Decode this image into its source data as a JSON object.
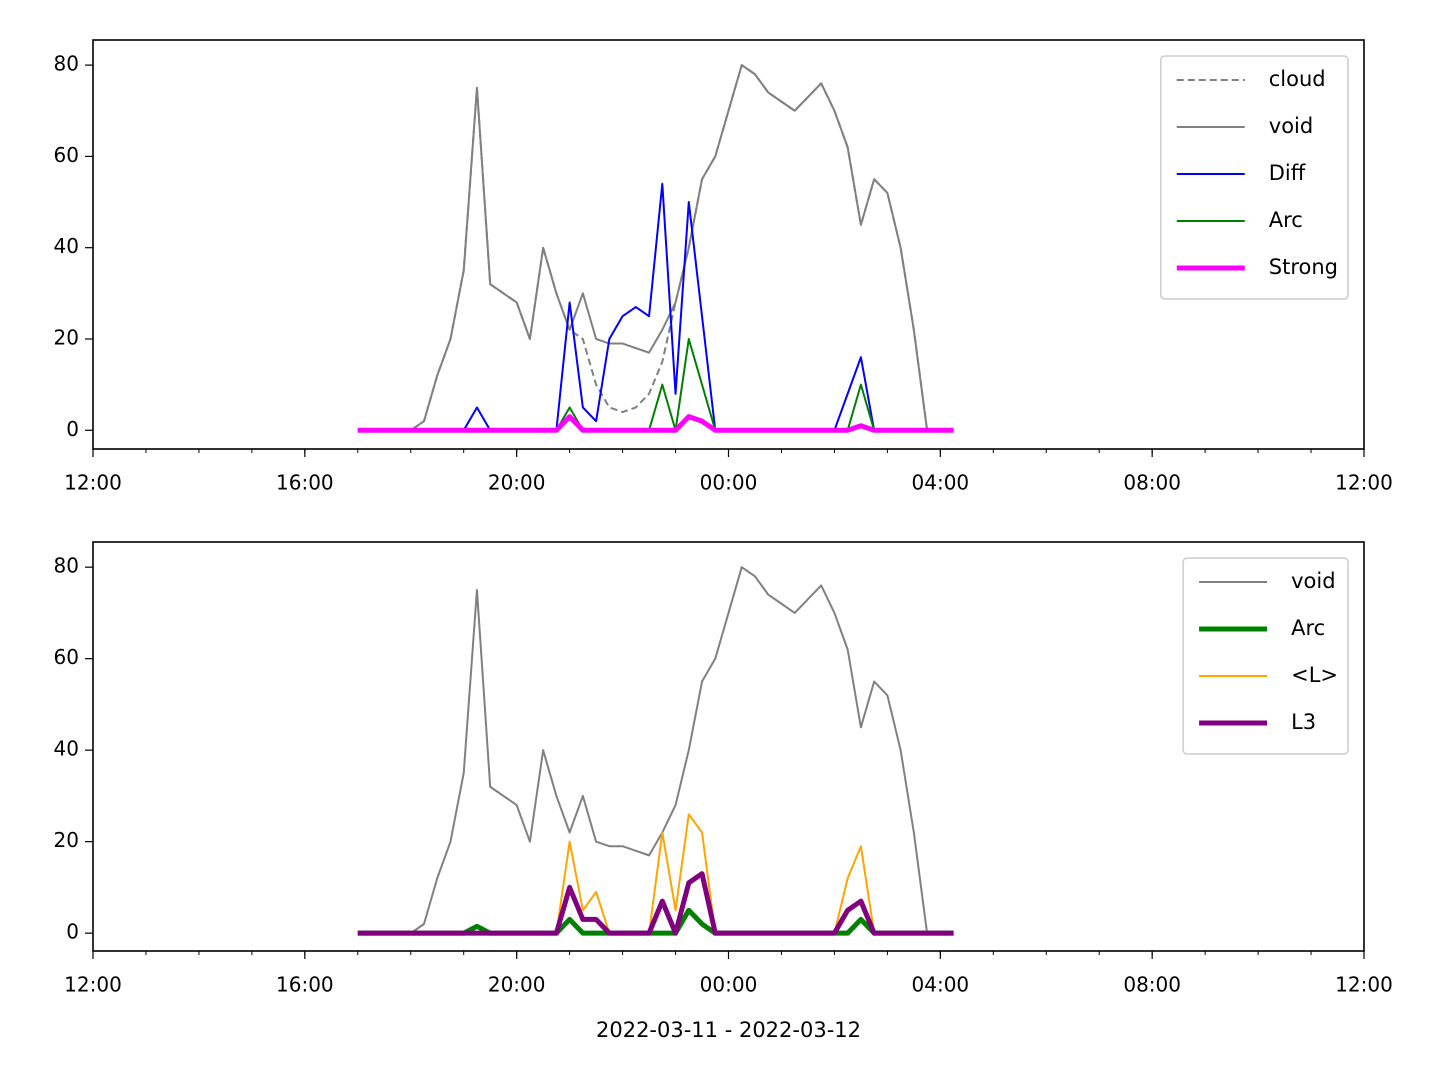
{
  "chart_data": [
    {
      "type": "line",
      "x": [
        "2022-03-11 17:00",
        "2022-03-11 17:15",
        "2022-03-11 17:30",
        "2022-03-11 17:45",
        "2022-03-11 18:00",
        "2022-03-11 18:15",
        "2022-03-11 18:30",
        "2022-03-11 18:45",
        "2022-03-11 19:00",
        "2022-03-11 19:15",
        "2022-03-11 19:30",
        "2022-03-11 19:45",
        "2022-03-11 20:00",
        "2022-03-11 20:15",
        "2022-03-11 20:30",
        "2022-03-11 20:45",
        "2022-03-11 21:00",
        "2022-03-11 21:15",
        "2022-03-11 21:30",
        "2022-03-11 21:45",
        "2022-03-11 22:00",
        "2022-03-11 22:15",
        "2022-03-11 22:30",
        "2022-03-11 22:45",
        "2022-03-11 23:00",
        "2022-03-11 23:15",
        "2022-03-11 23:30",
        "2022-03-11 23:45",
        "2022-03-12 00:00",
        "2022-03-12 00:15",
        "2022-03-12 00:30",
        "2022-03-12 00:45",
        "2022-03-12 01:00",
        "2022-03-12 01:15",
        "2022-03-12 01:30",
        "2022-03-12 01:45",
        "2022-03-12 02:00",
        "2022-03-12 02:15",
        "2022-03-12 02:30",
        "2022-03-12 02:45",
        "2022-03-12 03:00",
        "2022-03-12 03:15",
        "2022-03-12 03:30",
        "2022-03-12 03:45",
        "2022-03-12 04:00",
        "2022-03-12 04:15"
      ],
      "series": [
        {
          "name": "cloud",
          "color": "#808080",
          "linewidth": 1,
          "dashed": true,
          "values": [
            0,
            0,
            0,
            0,
            0,
            2,
            12,
            20,
            35,
            75,
            32,
            30,
            28,
            20,
            40,
            30,
            22,
            20,
            10,
            5,
            4,
            5,
            8,
            15,
            28,
            40,
            55,
            60,
            70,
            80,
            78,
            74,
            72,
            70,
            73,
            76,
            70,
            62,
            45,
            55,
            52,
            40,
            22,
            0,
            0,
            0
          ]
        },
        {
          "name": "void",
          "color": "#808080",
          "linewidth": 1,
          "dashed": false,
          "values": [
            0,
            0,
            0,
            0,
            0,
            2,
            12,
            20,
            35,
            75,
            32,
            30,
            28,
            20,
            40,
            30,
            22,
            30,
            20,
            19,
            19,
            18,
            17,
            22,
            28,
            40,
            55,
            60,
            70,
            80,
            78,
            74,
            72,
            70,
            73,
            76,
            70,
            62,
            45,
            55,
            52,
            40,
            22,
            0,
            0,
            0
          ]
        },
        {
          "name": "Diff",
          "color": "#0000ff",
          "linewidth": 1,
          "dashed": false,
          "values": [
            0,
            0,
            0,
            0,
            0,
            0,
            0,
            0,
            0,
            5,
            0,
            0,
            0,
            0,
            0,
            0,
            28,
            5,
            2,
            20,
            25,
            27,
            25,
            54,
            8,
            50,
            25,
            0,
            0,
            0,
            0,
            0,
            0,
            0,
            0,
            0,
            0,
            8,
            16,
            0,
            0,
            0,
            0,
            0,
            0,
            0
          ]
        },
        {
          "name": "Arc",
          "color": "#008000",
          "linewidth": 1,
          "dashed": false,
          "values": [
            0,
            0,
            0,
            0,
            0,
            0,
            0,
            0,
            0,
            0,
            0,
            0,
            0,
            0,
            0,
            0,
            5,
            0,
            0,
            0,
            0,
            0,
            0,
            10,
            0,
            20,
            10,
            0,
            0,
            0,
            0,
            0,
            0,
            0,
            0,
            0,
            0,
            0,
            10,
            0,
            0,
            0,
            0,
            0,
            0,
            0
          ]
        },
        {
          "name": "Strong",
          "color": "#ff00ff",
          "linewidth": 2.5,
          "dashed": false,
          "values": [
            0,
            0,
            0,
            0,
            0,
            0,
            0,
            0,
            0,
            0,
            0,
            0,
            0,
            0,
            0,
            0,
            3,
            0,
            0,
            0,
            0,
            0,
            0,
            0,
            0,
            3,
            2,
            0,
            0,
            0,
            0,
            0,
            0,
            0,
            0,
            0,
            0,
            0,
            1,
            0,
            0,
            0,
            0,
            0,
            0,
            0
          ]
        }
      ],
      "xlim": [
        "2022-03-11 12:00",
        "2022-03-12 12:00"
      ],
      "xticks": [
        {
          "value": "2022-03-11 12:00",
          "label": "12:00"
        },
        {
          "value": "2022-03-11 16:00",
          "label": "16:00"
        },
        {
          "value": "2022-03-11 20:00",
          "label": "20:00"
        },
        {
          "value": "2022-03-12 00:00",
          "label": "00:00"
        },
        {
          "value": "2022-03-12 04:00",
          "label": "04:00"
        },
        {
          "value": "2022-03-12 08:00",
          "label": "08:00"
        },
        {
          "value": "2022-03-12 12:00",
          "label": "12:00"
        }
      ],
      "ylim": [
        -4.1,
        85.5
      ],
      "yticks": [
        0,
        20,
        40,
        60,
        80
      ],
      "legend": "upper right"
    },
    {
      "type": "line",
      "x": [
        "2022-03-11 17:00",
        "2022-03-11 17:15",
        "2022-03-11 17:30",
        "2022-03-11 17:45",
        "2022-03-11 18:00",
        "2022-03-11 18:15",
        "2022-03-11 18:30",
        "2022-03-11 18:45",
        "2022-03-11 19:00",
        "2022-03-11 19:15",
        "2022-03-11 19:30",
        "2022-03-11 19:45",
        "2022-03-11 20:00",
        "2022-03-11 20:15",
        "2022-03-11 20:30",
        "2022-03-11 20:45",
        "2022-03-11 21:00",
        "2022-03-11 21:15",
        "2022-03-11 21:30",
        "2022-03-11 21:45",
        "2022-03-11 22:00",
        "2022-03-11 22:15",
        "2022-03-11 22:30",
        "2022-03-11 22:45",
        "2022-03-11 23:00",
        "2022-03-11 23:15",
        "2022-03-11 23:30",
        "2022-03-11 23:45",
        "2022-03-12 00:00",
        "2022-03-12 00:15",
        "2022-03-12 00:30",
        "2022-03-12 00:45",
        "2022-03-12 01:00",
        "2022-03-12 01:15",
        "2022-03-12 01:30",
        "2022-03-12 01:45",
        "2022-03-12 02:00",
        "2022-03-12 02:15",
        "2022-03-12 02:30",
        "2022-03-12 02:45",
        "2022-03-12 03:00",
        "2022-03-12 03:15",
        "2022-03-12 03:30",
        "2022-03-12 03:45",
        "2022-03-12 04:00",
        "2022-03-12 04:15"
      ],
      "series": [
        {
          "name": "void",
          "color": "#808080",
          "linewidth": 1,
          "dashed": false,
          "values": [
            0,
            0,
            0,
            0,
            0,
            2,
            12,
            20,
            35,
            75,
            32,
            30,
            28,
            20,
            40,
            30,
            22,
            30,
            20,
            19,
            19,
            18,
            17,
            22,
            28,
            40,
            55,
            60,
            70,
            80,
            78,
            74,
            72,
            70,
            73,
            76,
            70,
            62,
            45,
            55,
            52,
            40,
            22,
            0,
            0,
            0
          ]
        },
        {
          "name": "Arc",
          "color": "#008000",
          "linewidth": 2.5,
          "dashed": false,
          "values": [
            0,
            0,
            0,
            0,
            0,
            0,
            0,
            0,
            0,
            1.5,
            0,
            0,
            0,
            0,
            0,
            0,
            3,
            0,
            0,
            0,
            0,
            0,
            0,
            0,
            0,
            5,
            2,
            0,
            0,
            0,
            0,
            0,
            0,
            0,
            0,
            0,
            0,
            0,
            3,
            0,
            0,
            0,
            0,
            0,
            0,
            0
          ]
        },
        {
          "name": "<L>",
          "color": "#ffa500",
          "linewidth": 1,
          "dashed": false,
          "values": [
            0,
            0,
            0,
            0,
            0,
            0,
            0,
            0,
            0,
            0,
            0,
            0,
            0,
            0,
            0,
            0,
            20,
            5,
            9,
            0,
            0,
            0,
            0,
            22,
            5,
            26,
            22,
            0,
            0,
            0,
            0,
            0,
            0,
            0,
            0,
            0,
            0,
            12,
            19,
            0,
            0,
            0,
            0,
            0,
            0,
            0
          ]
        },
        {
          "name": "L3",
          "color": "#800080",
          "linewidth": 2.5,
          "dashed": false,
          "values": [
            0,
            0,
            0,
            0,
            0,
            0,
            0,
            0,
            0,
            0,
            0,
            0,
            0,
            0,
            0,
            0,
            10,
            3,
            3,
            0,
            0,
            0,
            0,
            7,
            0,
            11,
            13,
            0,
            0,
            0,
            0,
            0,
            0,
            0,
            0,
            0,
            0,
            5,
            7,
            0,
            0,
            0,
            0,
            0,
            0,
            0
          ]
        }
      ],
      "xlim": [
        "2022-03-11 12:00",
        "2022-03-12 12:00"
      ],
      "xticks": [
        {
          "value": "2022-03-11 12:00",
          "label": "12:00"
        },
        {
          "value": "2022-03-11 16:00",
          "label": "16:00"
        },
        {
          "value": "2022-03-11 20:00",
          "label": "20:00"
        },
        {
          "value": "2022-03-12 00:00",
          "label": "00:00"
        },
        {
          "value": "2022-03-12 04:00",
          "label": "04:00"
        },
        {
          "value": "2022-03-12 08:00",
          "label": "08:00"
        },
        {
          "value": "2022-03-12 12:00",
          "label": "12:00"
        }
      ],
      "ylim": [
        -3.9,
        85.5
      ],
      "yticks": [
        0,
        20,
        40,
        60,
        80
      ],
      "legend": "upper right",
      "xlabel": "2022-03-11 - 2022-03-12"
    }
  ]
}
